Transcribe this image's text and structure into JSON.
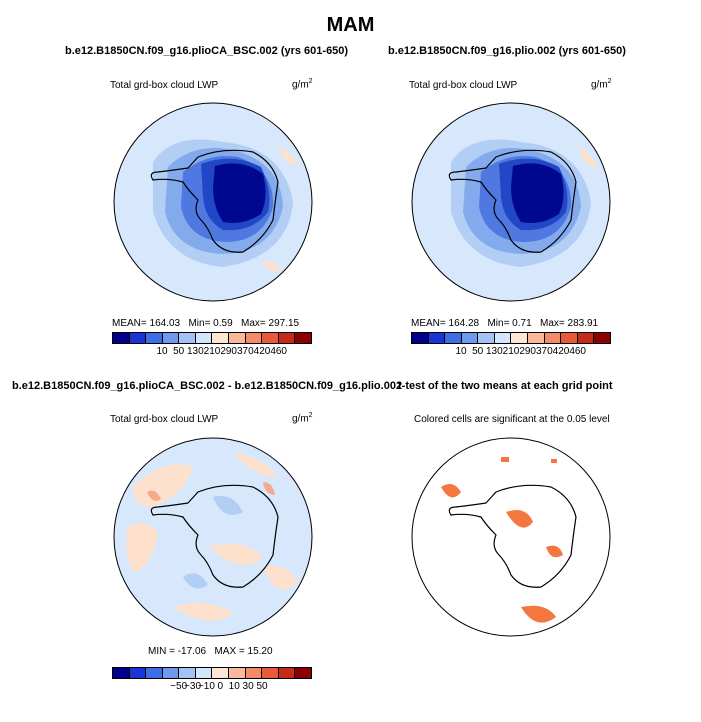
{
  "main_title": "MAM",
  "panels": [
    {
      "title": "b.e12.B1850CN.f09_g16.plioCA_BSC.002 (yrs 601-650)",
      "subtitle": "Total grd-box cloud LWP",
      "unit": "g/m",
      "unit_sup": "2",
      "stats": {
        "mean": "MEAN= 164.03",
        "min": "Min= 0.59",
        "max": "Max= 297.15"
      }
    },
    {
      "title": "b.e12.B1850CN.f09_g16.plio.002 (yrs 601-650)",
      "subtitle": "Total grd-box cloud LWP",
      "unit": "g/m",
      "unit_sup": "2",
      "stats": {
        "mean": "MEAN= 164.28",
        "min": "Min= 0.71",
        "max": "Max= 283.91"
      }
    },
    {
      "title": "b.e12.B1850CN.f09_g16.plioCA_BSC.002 - b.e12.B1850CN.f09_g16.plio.002",
      "subtitle": "Total grd-box cloud LWP",
      "unit": "g/m",
      "unit_sup": "2",
      "stats": {
        "min": "MIN = -17.06",
        "max": "MAX = 15.20"
      }
    },
    {
      "title": "t-test of the two means at each grid point",
      "subtitle": "Colored cells are significant at the 0.05 level"
    }
  ],
  "colorbars": {
    "lwp": {
      "colors": [
        "#00008b",
        "#1a34d6",
        "#3d6ee6",
        "#6f98ef",
        "#a3c3f5",
        "#d4e6fb",
        "#fde6d3",
        "#f9b99a",
        "#f48a66",
        "#e85a3a",
        "#c52a1a",
        "#8b0000"
      ],
      "labels": [
        "10",
        "50",
        "130",
        "210",
        "290",
        "370",
        "420",
        "460"
      ]
    },
    "diff": {
      "colors": [
        "#00008b",
        "#1a34d6",
        "#3d6ee6",
        "#6f98ef",
        "#a3c3f5",
        "#d4e6fb",
        "#fde6d3",
        "#f9b99a",
        "#f48a66",
        "#e85a3a",
        "#c52a1a",
        "#8b0000"
      ],
      "labels": [
        "−50",
        "−30",
        "−10",
        "0",
        "10",
        "30",
        "50"
      ]
    }
  },
  "map_colors": {
    "ocean": "#d7e8fc",
    "band1": "#b2cef5",
    "band2": "#84aaee",
    "band3": "#4f79e0",
    "band4": "#2147c6",
    "core": "#00088f",
    "warm": "#fde1cc",
    "warm2": "#f6a98a",
    "sig": "#f57740"
  }
}
